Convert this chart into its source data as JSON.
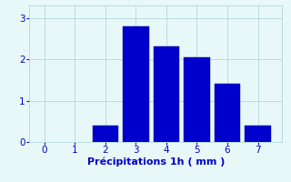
{
  "bar_positions": [
    2,
    3,
    4,
    5,
    6,
    7
  ],
  "bar_heights": [
    0.4,
    2.8,
    2.3,
    2.05,
    1.4,
    0.4
  ],
  "bar_color": "#0000cc",
  "bar_edgecolor": "#000088",
  "background_color": "#e8f8f8",
  "grid_color": "#b0d8d8",
  "xlabel": "Précipitations 1h ( mm )",
  "xlabel_color": "#0000cc",
  "tick_color": "#0000cc",
  "ylim": [
    0,
    3.3
  ],
  "xlim": [
    -0.5,
    7.8
  ],
  "yticks": [
    0,
    1,
    2,
    3
  ],
  "xticks": [
    0,
    1,
    2,
    3,
    4,
    5,
    6,
    7
  ],
  "bar_width": 0.85,
  "xlabel_fontsize": 8,
  "tick_fontsize": 7.5
}
